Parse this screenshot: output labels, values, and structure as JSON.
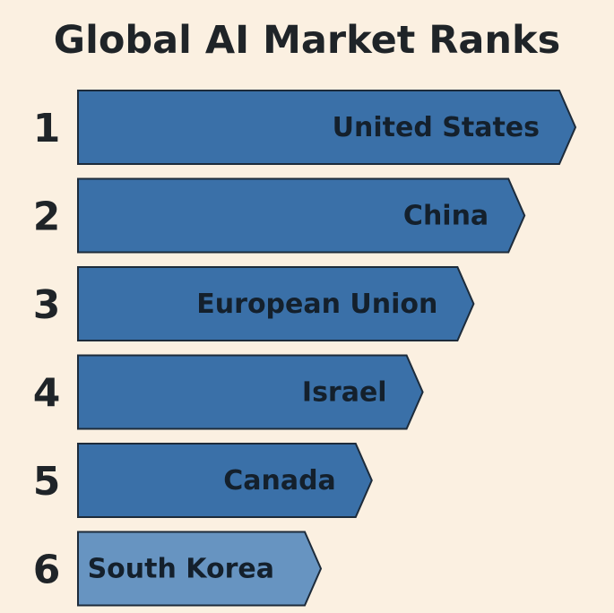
{
  "chart_data": {
    "type": "bar",
    "title": "Global AI Market Ranks",
    "xlabel": "",
    "ylabel": "",
    "categories": [
      "United States",
      "China",
      "European Union",
      "Israel",
      "Canada",
      "South Korea"
    ],
    "ranks": [
      1,
      2,
      3,
      4,
      5,
      6
    ],
    "values": [
      6,
      5,
      4,
      3,
      2,
      1
    ],
    "orientation": "horizontal",
    "grid": false,
    "legend": "none",
    "colors": {
      "background": "#fbf0e1",
      "bar": "#3a70a8",
      "bar_highlight": "#6794c1",
      "bar_border": "#1d2b3a",
      "text": "#1f2428"
    }
  }
}
